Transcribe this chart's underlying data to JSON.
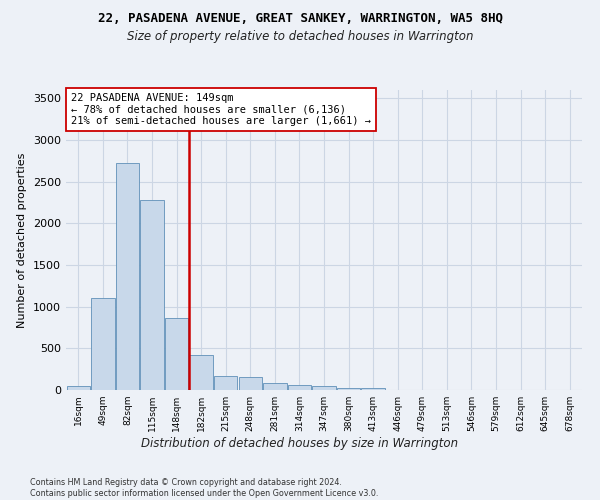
{
  "title": "22, PASADENA AVENUE, GREAT SANKEY, WARRINGTON, WA5 8HQ",
  "subtitle": "Size of property relative to detached houses in Warrington",
  "xlabel": "Distribution of detached houses by size in Warrington",
  "ylabel": "Number of detached properties",
  "bar_values": [
    50,
    1110,
    2720,
    2280,
    870,
    420,
    165,
    160,
    90,
    55,
    45,
    30,
    25,
    0,
    0,
    0,
    0,
    0,
    0,
    0,
    0
  ],
  "bar_labels": [
    "16sqm",
    "49sqm",
    "82sqm",
    "115sqm",
    "148sqm",
    "182sqm",
    "215sqm",
    "248sqm",
    "281sqm",
    "314sqm",
    "347sqm",
    "380sqm",
    "413sqm",
    "446sqm",
    "479sqm",
    "513sqm",
    "546sqm",
    "579sqm",
    "612sqm",
    "645sqm",
    "678sqm"
  ],
  "bar_color": "#c8d8ea",
  "bar_edge_color": "#6090b8",
  "vline_color": "#cc0000",
  "property_bin_index": 4,
  "annotation_text": "22 PASADENA AVENUE: 149sqm\n← 78% of detached houses are smaller (6,136)\n21% of semi-detached houses are larger (1,661) →",
  "annotation_box_color": "#ffffff",
  "annotation_box_edge": "#cc0000",
  "ylim_max": 3600,
  "yticks": [
    0,
    500,
    1000,
    1500,
    2000,
    2500,
    3000,
    3500
  ],
  "grid_color": "#ccd6e4",
  "background_color": "#edf1f7",
  "footer_line1": "Contains HM Land Registry data © Crown copyright and database right 2024.",
  "footer_line2": "Contains public sector information licensed under the Open Government Licence v3.0."
}
